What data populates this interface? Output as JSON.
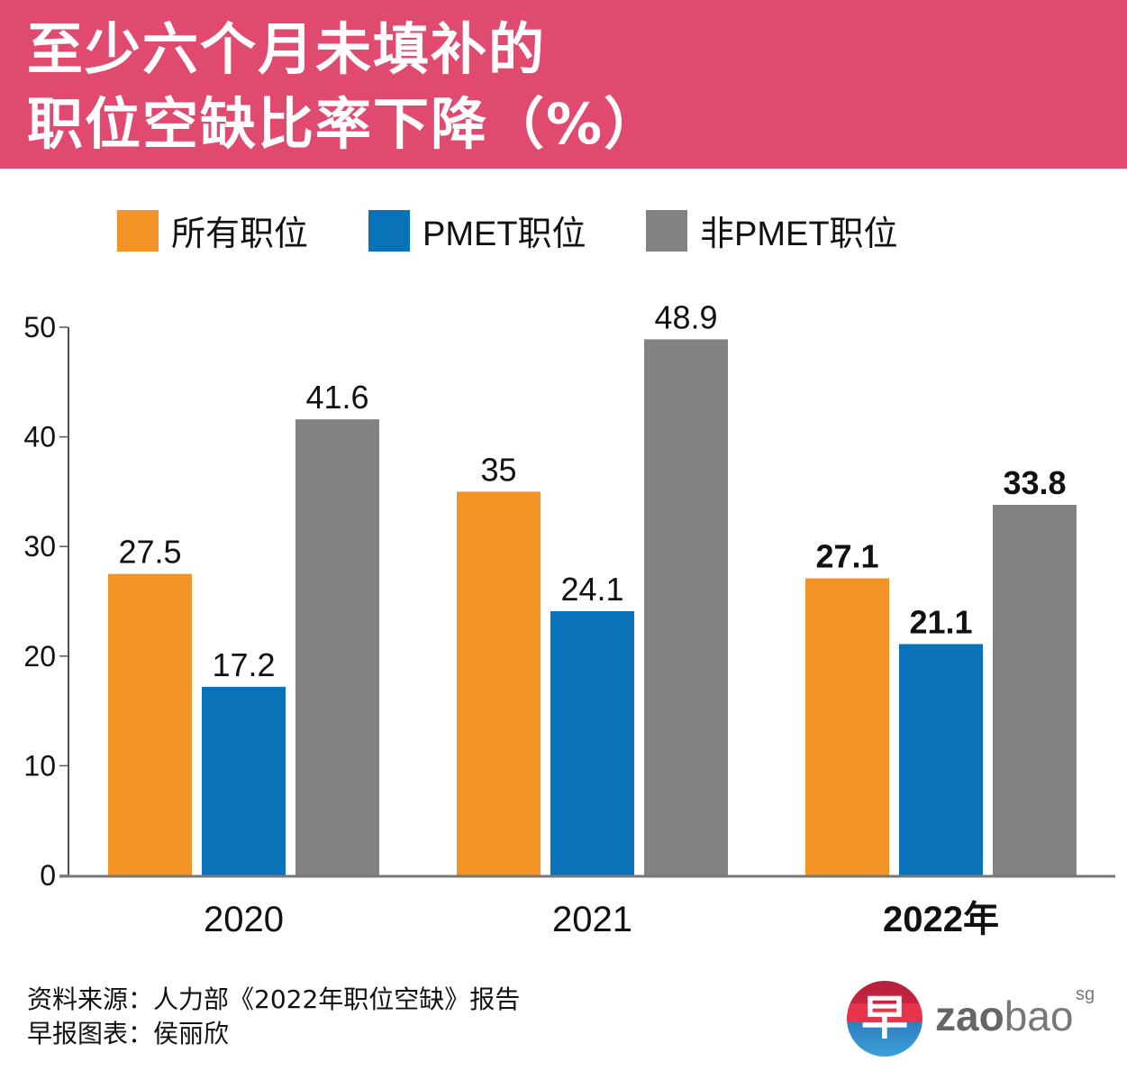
{
  "header": {
    "title_line1": "至少六个月未填补的",
    "title_line2": "职位空缺比率下降（%）",
    "background_color": "#e04a6e"
  },
  "legend": [
    {
      "label": "所有职位",
      "color": "#f39325"
    },
    {
      "label": "PMET职位",
      "color": "#0a72b9"
    },
    {
      "label": "非PMET职位",
      "color": "#828282"
    }
  ],
  "chart_data": {
    "type": "bar",
    "title": "至少六个月未填补的职位空缺比率下降（%）",
    "xlabel": "",
    "ylabel": "%",
    "categories": [
      "2020",
      "2021",
      "2022年"
    ],
    "series": [
      {
        "name": "所有职位",
        "color": "#f39325",
        "values": [
          27.5,
          35,
          27.1
        ],
        "labels": [
          "27.5",
          "35",
          "27.1"
        ]
      },
      {
        "name": "PMET职位",
        "color": "#0a72b9",
        "values": [
          17.2,
          24.1,
          21.1
        ],
        "labels": [
          "17.2",
          "24.1",
          "21.1"
        ]
      },
      {
        "name": "非PMET职位",
        "color": "#828282",
        "values": [
          41.6,
          48.9,
          33.8
        ],
        "labels": [
          "41.6",
          "48.9",
          "33.8"
        ]
      }
    ],
    "ylim": [
      0,
      50
    ],
    "yticks": [
      0,
      10,
      20,
      30,
      40,
      50
    ],
    "ytick_labels": [
      "0",
      "10",
      "20",
      "30",
      "40",
      "50"
    ],
    "bold_category_index": 2,
    "grid": false,
    "legend_position": "top"
  },
  "footer": {
    "source": "资料来源：人力部《2022年职位空缺》报告",
    "credit": "早报图表：侯丽欣"
  },
  "logo": {
    "glyph": "早",
    "text_bold": "zao",
    "text_light": "bao",
    "superscript": "sg"
  }
}
